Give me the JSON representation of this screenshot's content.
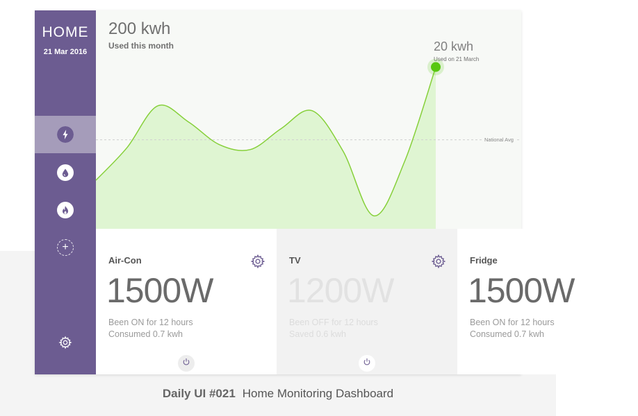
{
  "sidebar": {
    "title": "HOME",
    "date": "21 Mar 2016",
    "nav": [
      {
        "icon": "electricity-icon",
        "active": true
      },
      {
        "icon": "water-drop-icon",
        "active": false
      },
      {
        "icon": "gas-flame-icon",
        "active": false
      },
      {
        "icon": "add-icon",
        "active": false
      }
    ],
    "settings_icon": "gear-icon"
  },
  "summary": {
    "total_value": "200 kwh",
    "total_label": "Used this month",
    "peak_value": "20 kwh",
    "peak_label": "Used on 21 March",
    "avg_label": "National Avg"
  },
  "chart_data": {
    "type": "area",
    "series": [
      {
        "values": [
          0.3,
          0.5,
          0.76,
          0.66,
          0.52,
          0.49,
          0.62,
          0.73,
          0.48,
          0.08,
          0.42,
          1.0
        ]
      }
    ],
    "national_avg": 0.55,
    "highlight_index": 11,
    "ylim": [
      0,
      1.2
    ],
    "colors": {
      "line": "#86d03a",
      "fill": "#dff5d2",
      "point": "#58c711"
    },
    "grid": false
  },
  "cards": [
    {
      "name": "Air-Con",
      "watts": "1500W",
      "line1": "Been ON for 12 hours",
      "line2": "Consumed 0.7 kwh",
      "on": true
    },
    {
      "name": "TV",
      "watts": "1200W",
      "line1": "Been OFF for 12 hours",
      "line2": "Saved 0.6 kwh",
      "on": false
    },
    {
      "name": "Fridge",
      "watts": "1500W",
      "line1": "Been ON for 12 hours",
      "line2": "Consumed 0.7 kwh",
      "on": true
    }
  ],
  "caption": {
    "bold": "Daily UI #021",
    "text": "Home Monitoring Dashboard"
  },
  "colors": {
    "sidebar": "#6c5c91",
    "sidebar_active": "#a59cba",
    "accent_green": "#86d03a"
  }
}
